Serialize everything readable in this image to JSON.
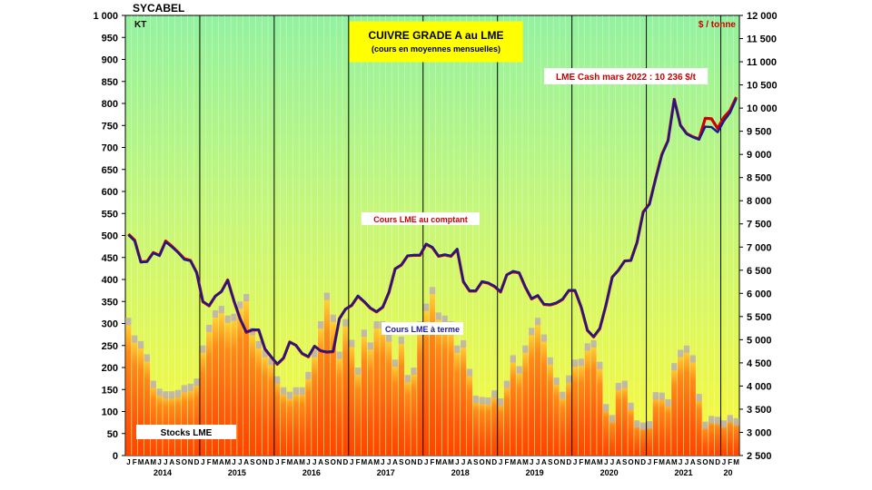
{
  "brand": "SYCABEL",
  "chart_data": {
    "type": "line",
    "title": "CUIVRE GRADE A au LME",
    "subtitle": "(cours en moyennes mensuelles)",
    "ylabel": "KT",
    "y2label": "$ / tonne",
    "annotation": "LME Cash mars 2022 : 10 236 $/t",
    "series_label_cash": "Cours LME au comptant",
    "series_label_forward": "Cours LME à terme",
    "stocks_label": "Stocks LME",
    "ylim": [
      0,
      1000
    ],
    "y2lim": [
      2500,
      12000
    ],
    "y_ticks": [
      "0",
      "50",
      "100",
      "150",
      "200",
      "250",
      "300",
      "350",
      "400",
      "450",
      "500",
      "550",
      "600",
      "650",
      "700",
      "750",
      "800",
      "850",
      "900",
      "950",
      "1 000"
    ],
    "y2_ticks": [
      "2 500",
      "3 000",
      "3 500",
      "4 000",
      "4 500",
      "5 000",
      "5 500",
      "6 000",
      "6 500",
      "7 000",
      "7 500",
      "8 000",
      "8 500",
      "9 000",
      "9 500",
      "10 000",
      "10 500",
      "11 000",
      "11 500",
      "12 000"
    ],
    "month_letters": [
      "J",
      "F",
      "M",
      "A",
      "M",
      "J",
      "J",
      "A",
      "S",
      "O",
      "N",
      "D"
    ],
    "year_labels": [
      "2014",
      "2015",
      "2016",
      "2017",
      "2018",
      "2019",
      "2020",
      "2021",
      "20"
    ],
    "months_shown": 99,
    "stocks_kt": [
      313,
      273,
      260,
      230,
      170,
      152,
      146,
      146,
      149,
      160,
      163,
      175,
      250,
      297,
      330,
      340,
      318,
      322,
      350,
      367,
      290,
      260,
      240,
      222,
      180,
      155,
      145,
      155,
      155,
      190,
      240,
      305,
      370,
      320,
      236,
      310,
      263,
      200,
      286,
      257,
      305,
      305,
      275,
      218,
      270,
      183,
      200,
      305,
      345,
      383,
      325,
      318,
      305,
      250,
      262,
      197,
      136,
      133,
      132,
      148,
      130,
      170,
      228,
      203,
      250,
      290,
      313,
      275,
      223,
      177,
      145,
      182,
      218,
      220,
      255,
      262,
      213,
      117,
      92,
      165,
      170,
      120,
      80,
      75,
      78,
      144,
      143,
      128,
      210,
      240,
      250,
      228,
      140,
      77,
      90,
      88,
      80,
      92,
      85
    ],
    "cash_usd_t": [
      7280,
      7150,
      6680,
      6690,
      6880,
      6820,
      7130,
      7020,
      6890,
      6750,
      6710,
      6450,
      5820,
      5730,
      5940,
      6040,
      6290,
      5840,
      5450,
      5160,
      5210,
      5210,
      4800,
      4630,
      4470,
      4600,
      4950,
      4880,
      4700,
      4630,
      4860,
      4760,
      4730,
      4740,
      5450,
      5660,
      5740,
      5940,
      5820,
      5680,
      5600,
      5700,
      6020,
      6530,
      6610,
      6810,
      6820,
      6820,
      7060,
      6990,
      6800,
      6830,
      6800,
      6950,
      6250,
      6050,
      6050,
      6250,
      6220,
      6150,
      6030,
      6400,
      6470,
      6440,
      6130,
      5880,
      5950,
      5760,
      5750,
      5790,
      5870,
      6060,
      6060,
      5700,
      5200,
      5060,
      5240,
      5750,
      6350,
      6500,
      6700,
      6710,
      7100,
      7760,
      7930,
      8480,
      9000,
      9300,
      10190,
      9630,
      9450,
      9380,
      9330,
      9780,
      9770,
      9560,
      9800,
      9950,
      10236
    ],
    "forward_usd_t": [
      7260,
      7130,
      6670,
      6680,
      6870,
      6810,
      7110,
      7000,
      6880,
      6730,
      6700,
      6440,
      5830,
      5740,
      5940,
      6040,
      6280,
      5850,
      5460,
      5170,
      5220,
      5220,
      4810,
      4640,
      4480,
      4610,
      4950,
      4880,
      4710,
      4640,
      4860,
      4760,
      4740,
      4750,
      5450,
      5660,
      5750,
      5950,
      5830,
      5690,
      5610,
      5710,
      6030,
      6530,
      6620,
      6810,
      6830,
      6830,
      7070,
      7000,
      6810,
      6840,
      6810,
      6960,
      6260,
      6060,
      6060,
      6260,
      6230,
      6160,
      6040,
      6400,
      6480,
      6450,
      6140,
      5890,
      5960,
      5770,
      5760,
      5800,
      5880,
      6070,
      6070,
      5710,
      5210,
      5070,
      5250,
      5760,
      6350,
      6500,
      6700,
      6710,
      7100,
      7750,
      7920,
      8470,
      8980,
      9290,
      10180,
      9620,
      9440,
      9370,
      9320,
      9600,
      9590,
      9480,
      9720,
      9900,
      10200
    ]
  }
}
